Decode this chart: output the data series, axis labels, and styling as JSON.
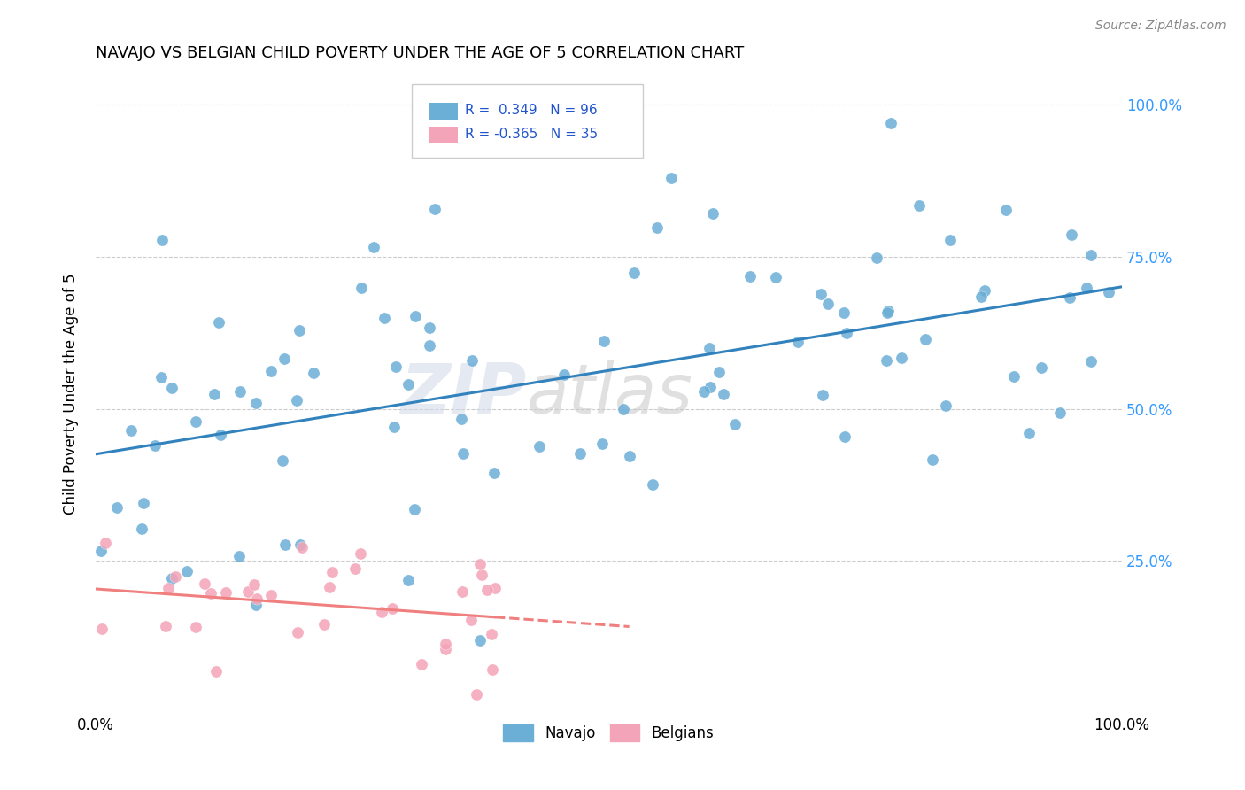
{
  "title": "NAVAJO VS BELGIAN CHILD POVERTY UNDER THE AGE OF 5 CORRELATION CHART",
  "source": "Source: ZipAtlas.com",
  "ylabel": "Child Poverty Under the Age of 5",
  "legend_navajo": "Navajo",
  "legend_belgians": "Belgians",
  "navajo_color": "#6baed6",
  "belgian_color": "#f4a4b8",
  "navajo_line_color": "#3182bd",
  "belgian_line_color": "#f08080",
  "watermark_zip": "ZIP",
  "watermark_atlas": "atlas",
  "navajo_r": "0.349",
  "navajo_n": "96",
  "belgian_r": "-0.365",
  "belgian_n": "35"
}
